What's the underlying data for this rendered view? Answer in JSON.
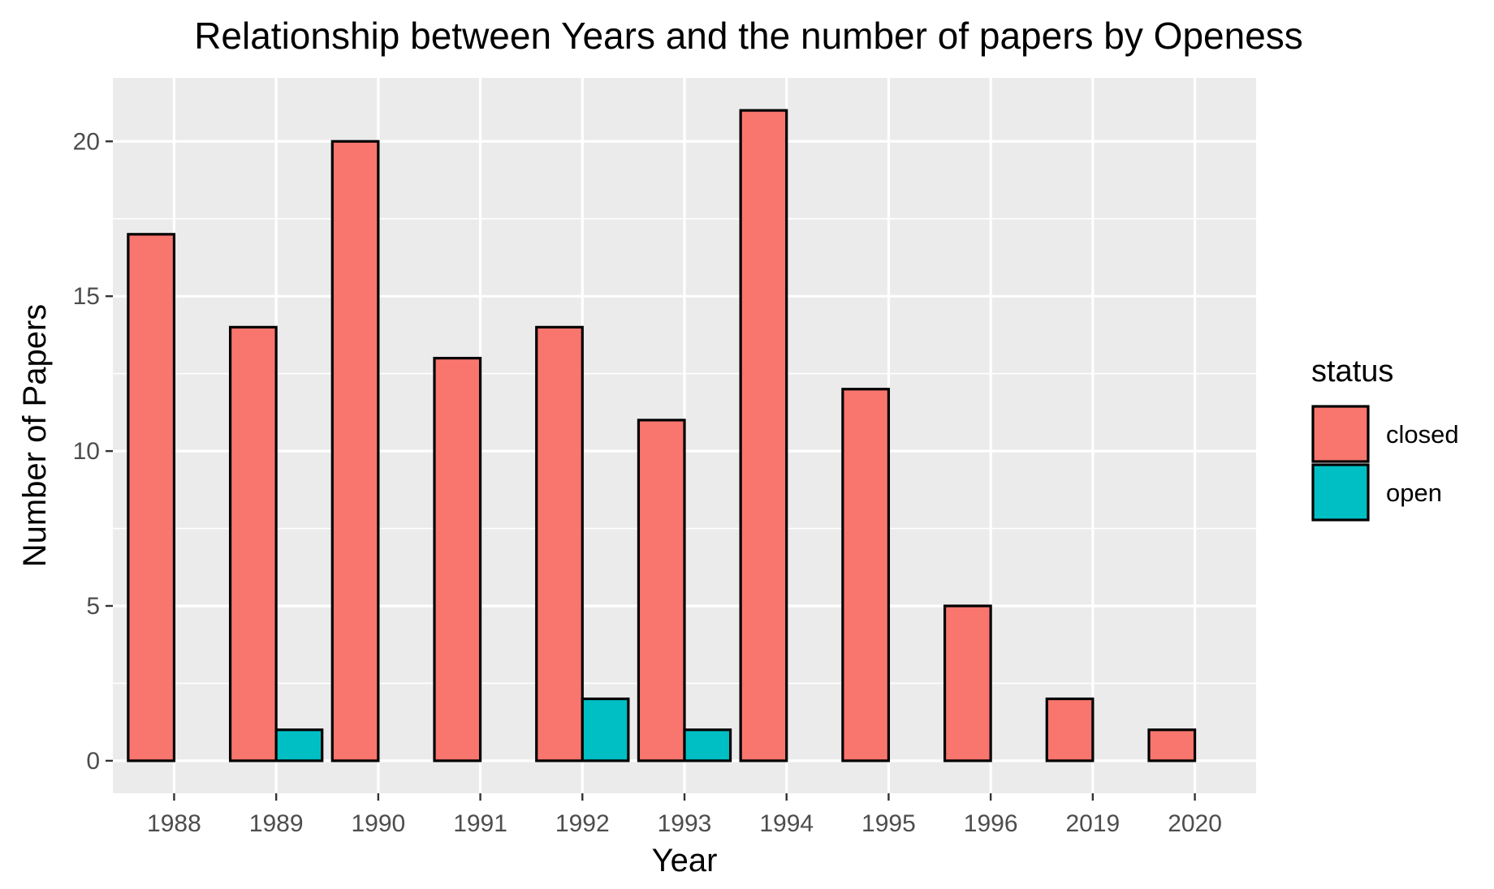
{
  "chart_data": {
    "type": "bar",
    "title": "Relationship between Years and the number of papers by Openess",
    "xlabel": "Year",
    "ylabel": "Number of Papers",
    "categories": [
      "1988",
      "1989",
      "1990",
      "1991",
      "1992",
      "1993",
      "1994",
      "1995",
      "1996",
      "2019",
      "2020"
    ],
    "series": [
      {
        "name": "closed",
        "color": "#F8766D",
        "values": [
          17,
          14,
          20,
          13,
          14,
          11,
          21,
          12,
          5,
          2,
          1
        ]
      },
      {
        "name": "open",
        "color": "#00BFC4",
        "values": [
          0,
          1,
          0,
          0,
          2,
          1,
          0,
          0,
          0,
          0,
          0
        ]
      }
    ],
    "ylim": [
      -1.05,
      22.05
    ],
    "yticks": [
      0,
      5,
      10,
      15,
      20
    ],
    "grid": true,
    "panel_background": "#EBEBEB",
    "legend": {
      "title": "status",
      "position": "right",
      "entries": [
        "closed",
        "open"
      ]
    }
  }
}
